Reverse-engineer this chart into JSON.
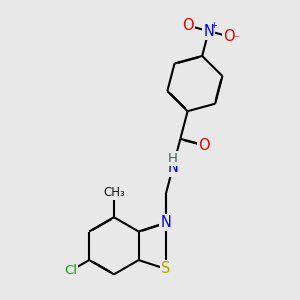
{
  "bg_color": "#e8e8e8",
  "bond_color": "#000000",
  "lw": 1.5,
  "dbo": 0.012,
  "atoms": {
    "S": {
      "color": "#aaaa00",
      "fontsize": 12
    },
    "N": {
      "color": "#0000ee",
      "fontsize": 12
    },
    "O": {
      "color": "#ee0000",
      "fontsize": 12
    },
    "Cl": {
      "color": "#00aa00",
      "fontsize": 11
    },
    "H": {
      "color": "#336666",
      "fontsize": 10
    }
  },
  "figsize": [
    3.0,
    3.0
  ],
  "dpi": 100
}
